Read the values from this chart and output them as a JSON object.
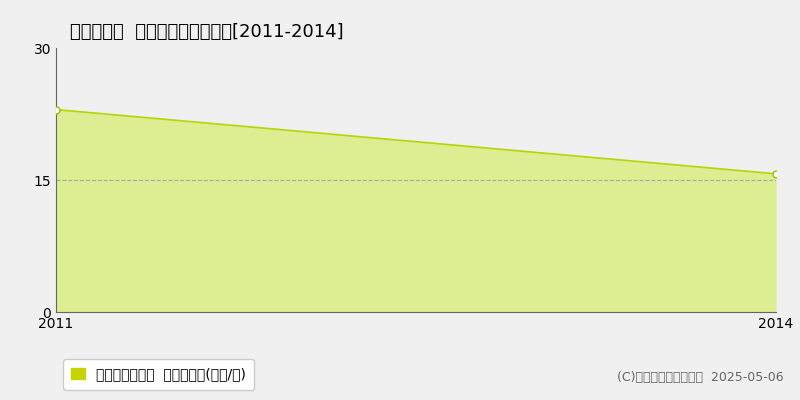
{
  "title": "焼津市塩津  マンション価格推移[2011-2014]",
  "x": [
    2011,
    2014
  ],
  "y": [
    23.0,
    15.7
  ],
  "xlim": [
    2011,
    2014
  ],
  "ylim": [
    0,
    30
  ],
  "yticks": [
    0,
    15,
    30
  ],
  "xticks": [
    2011,
    2014
  ],
  "line_color": "#b8d400",
  "fill_color": "#d4ed6a",
  "fill_alpha": 0.7,
  "marker": "o",
  "marker_facecolor": "white",
  "marker_edgecolor": "#a0b800",
  "marker_size": 5,
  "grid_color": "#aaaaaa",
  "grid_style": "--",
  "background_color": "#f0f0f0",
  "plot_bg_color": "#f0f0f0",
  "legend_label": "マンション価格  平均坪単価(万円/坪)",
  "legend_color": "#c8d400",
  "copyright_text": "(C)土地価格ドットコム  2025-05-06",
  "title_fontsize": 13,
  "tick_fontsize": 10,
  "legend_fontsize": 10,
  "copyright_fontsize": 9
}
